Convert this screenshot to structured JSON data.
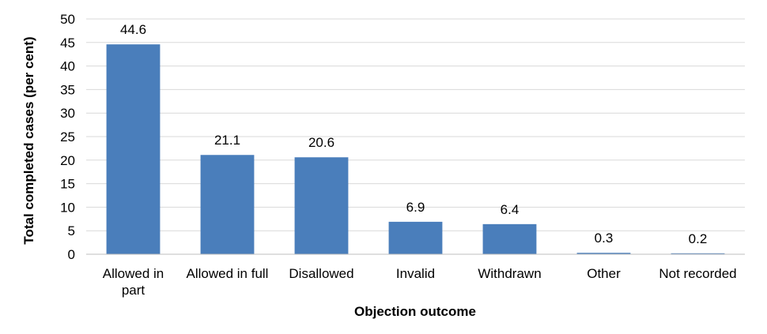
{
  "chart_data": {
    "type": "bar",
    "categories": [
      "Allowed in part",
      "Allowed in full",
      "Disallowed",
      "Invalid",
      "Withdrawn",
      "Other",
      "Not recorded"
    ],
    "category_lines": [
      [
        "Allowed in",
        "part"
      ],
      [
        "Allowed in full"
      ],
      [
        "Disallowed"
      ],
      [
        "Invalid"
      ],
      [
        "Withdrawn"
      ],
      [
        "Other"
      ],
      [
        "Not recorded"
      ]
    ],
    "values": [
      44.6,
      21.1,
      20.6,
      6.9,
      6.4,
      0.3,
      0.2
    ],
    "data_labels": [
      "44.6",
      "21.1",
      "20.6",
      "6.9",
      "6.4",
      "0.3",
      "0.2"
    ],
    "xlabel": "Objection outcome",
    "ylabel": "Total completed cases (per cent)",
    "ylim": [
      0,
      50
    ],
    "yticks": [
      0,
      5,
      10,
      15,
      20,
      25,
      30,
      35,
      40,
      45,
      50
    ],
    "grid": true,
    "legend": "none",
    "bar_color": "#4a7ebb"
  }
}
